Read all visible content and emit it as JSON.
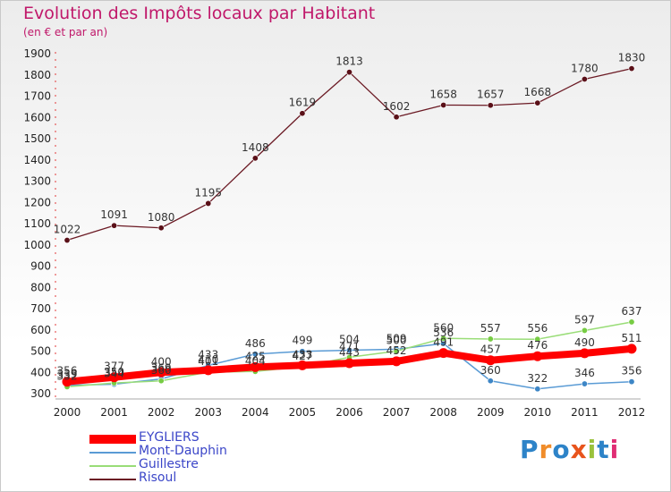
{
  "header": {
    "title": "Evolution des Impôts locaux par Habitant",
    "subtitle": "(en € et par an)"
  },
  "logo": {
    "text": "Proxiti",
    "colors": [
      "#2d83c8",
      "#f08c2a",
      "#2d83c8",
      "#e8541c",
      "#9ac23c",
      "#2d83c8",
      "#e02d74"
    ]
  },
  "chart_data": {
    "type": "line",
    "title": "Evolution des Impôts locaux par Habitant",
    "subtitle": "(en € et par an)",
    "x": [
      2000,
      2001,
      2002,
      2003,
      2004,
      2005,
      2006,
      2007,
      2008,
      2009,
      2010,
      2011,
      2012
    ],
    "ylim": [
      300,
      1900
    ],
    "yticks": [
      300,
      400,
      500,
      600,
      700,
      800,
      900,
      1000,
      1100,
      1200,
      1300,
      1400,
      1500,
      1600,
      1700,
      1800,
      1900
    ],
    "grid": false,
    "legend": "bottom-left",
    "series": [
      {
        "name": "EYGLIERS",
        "color": "#ff0000",
        "values": [
          356,
          377,
          400,
          410,
          425,
          433,
          443,
          452,
          491,
          457,
          476,
          490,
          511
        ],
        "labels": [
          "356",
          "377",
          "400",
          "410",
          "425",
          "433",
          "443",
          "452",
          "491",
          "457",
          "476",
          "490",
          "511"
        ]
      },
      {
        "name": "Mont-Dauphin",
        "color": "#5a9bd5",
        "values": [
          339,
          344,
          369,
          433,
          486,
          499,
          504,
          509,
          536,
          360,
          322,
          346,
          356
        ],
        "labels": [
          "339",
          "344",
          "369",
          "433",
          "486",
          "499",
          "504",
          "509",
          "536",
          "360",
          "322",
          "346",
          "356"
        ]
      },
      {
        "name": "Guillestre",
        "color": "#99dd77",
        "values": [
          332,
          350,
          360,
          401,
          404,
          427,
          471,
          500,
          560,
          557,
          556,
          597,
          637
        ],
        "labels": [
          "332",
          "350",
          "360",
          "401",
          "404",
          "427",
          "471",
          "500",
          "560",
          "557",
          "556",
          "597",
          "637"
        ]
      },
      {
        "name": "Risoul",
        "color": "#6b1a24",
        "values": [
          1022,
          1091,
          1080,
          1195,
          1408,
          1619,
          1813,
          1602,
          1658,
          1657,
          1668,
          1780,
          1830
        ],
        "labels": [
          "1022",
          "1091",
          "1080",
          "1195",
          "1408",
          "1619",
          "1813",
          "1602",
          "1658",
          "1657",
          "1668",
          "1780",
          "1830"
        ]
      }
    ]
  }
}
